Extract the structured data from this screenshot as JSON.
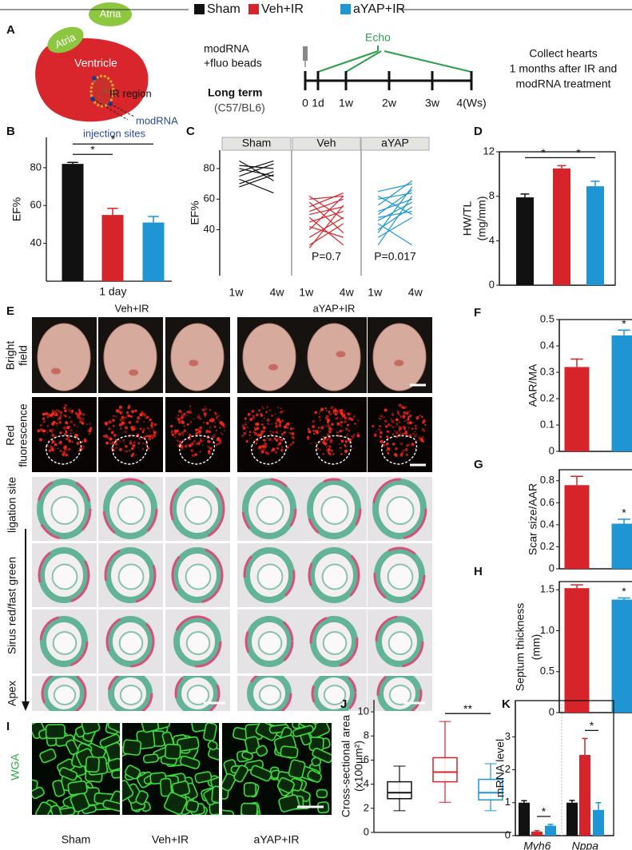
{
  "legend": {
    "items": [
      {
        "label": "Sham",
        "color": "#111111"
      },
      {
        "label": "Veh+IR",
        "color": "#d7242b"
      },
      {
        "label": "aYAP+IR",
        "color": "#1f96d3"
      }
    ]
  },
  "panel_A": {
    "label": "A",
    "atria": [
      "Atria",
      "Atria"
    ],
    "ventricle": "Ventricle",
    "ir_region": "IR region",
    "injection": [
      "modRNA",
      "injection sites"
    ],
    "treatment": [
      "modRNA",
      "+fluo beads"
    ],
    "model": [
      "Long term",
      "(C57/BL6)"
    ],
    "echo": "Echo",
    "timeline": [
      "0",
      "1d",
      "1w",
      "2w",
      "3w",
      "4(Ws)"
    ],
    "collect": [
      "Collect hearts",
      "1 months after IR and",
      "modRNA treatment"
    ]
  },
  "panel_E": {
    "label": "E",
    "groups": [
      "Veh+IR",
      "aYAP+IR"
    ],
    "row_labels": [
      [
        "Bright",
        "field"
      ],
      [
        "Red",
        "fluorescence"
      ]
    ],
    "section_labels": [
      "ligation site",
      "Sirus red/fast green",
      "Apex"
    ]
  },
  "panel_I": {
    "label": "I",
    "stain": "WGA",
    "groups": [
      "Sham",
      "Veh+IR",
      "aYAP+IR"
    ]
  },
  "chart_data": [
    {
      "type": "bar",
      "label": "B",
      "ylabel": [
        "EF%"
      ],
      "ylim": [
        20,
        96
      ],
      "yticks": [
        40,
        60,
        80
      ],
      "frame": false,
      "colors": [
        "#111111",
        "#d7242b",
        "#1f96d3"
      ],
      "groups": [
        {
          "label": "1 day",
          "values": [
            82,
            55,
            51
          ],
          "errors": [
            0.8,
            3.5,
            3.2
          ]
        }
      ],
      "annotations": [
        {
          "text": "*",
          "between": [
            0,
            1
          ]
        },
        {
          "text": "*",
          "between": [
            0,
            2
          ]
        }
      ]
    },
    {
      "type": "paired_line",
      "label": "C",
      "ylabel": [
        "EF%"
      ],
      "ylim": [
        10,
        92
      ],
      "yticks": [
        40,
        60,
        80
      ],
      "categories": [
        "1w",
        "4w"
      ],
      "facets": [
        {
          "title": "Sham",
          "color": "#111111",
          "pairs": [
            [
              82,
              80
            ],
            [
              80,
              75
            ],
            [
              78,
              85
            ],
            [
              85,
              72
            ],
            [
              75,
              83
            ],
            [
              70,
              78
            ],
            [
              73,
              64
            ],
            [
              68,
              76
            ]
          ]
        },
        {
          "title": "Veh",
          "color": "#d7242b",
          "annotation": "P=0.7",
          "pairs": [
            [
              62,
              47
            ],
            [
              60,
              62
            ],
            [
              58,
              38
            ],
            [
              55,
              64
            ],
            [
              52,
              60
            ],
            [
              50,
              55
            ],
            [
              48,
              30
            ],
            [
              45,
              52
            ],
            [
              42,
              35
            ],
            [
              40,
              62
            ],
            [
              35,
              48
            ],
            [
              30,
              44
            ],
            [
              28,
              56
            ]
          ]
        },
        {
          "title": "aYAP",
          "color": "#1f96d3",
          "annotation": "P=0.017",
          "pairs": [
            [
              65,
              70
            ],
            [
              62,
              50
            ],
            [
              60,
              64
            ],
            [
              56,
              72
            ],
            [
              52,
              60
            ],
            [
              50,
              66
            ],
            [
              48,
              52
            ],
            [
              46,
              58
            ],
            [
              44,
              30
            ],
            [
              40,
              55
            ],
            [
              38,
              68
            ],
            [
              35,
              48
            ],
            [
              30,
              62
            ]
          ]
        }
      ]
    },
    {
      "type": "bar",
      "label": "D",
      "ylabel": [
        "HW/TL",
        "(mg/mm)"
      ],
      "ylim": [
        0,
        12
      ],
      "yticks": [
        0,
        4,
        8,
        12
      ],
      "frame": true,
      "colors": [
        "#111111",
        "#d7242b",
        "#1f96d3"
      ],
      "groups": [
        {
          "values": [
            7.9,
            10.5,
            8.9
          ],
          "errors": [
            0.3,
            0.25,
            0.45
          ]
        }
      ],
      "annotations": [
        {
          "text": "*",
          "between": [
            0,
            1
          ]
        },
        {
          "text": "*",
          "between": [
            1,
            2
          ]
        }
      ]
    },
    {
      "type": "bar",
      "label": "F",
      "ylabel": [
        "AAR/MA"
      ],
      "ylim": [
        0,
        0.5
      ],
      "yticks": [
        0,
        0.1,
        0.2,
        0.3,
        0.4,
        0.5
      ],
      "frame": true,
      "colors": [
        "#d7242b",
        "#1f96d3"
      ],
      "groups": [
        {
          "values": [
            0.32,
            0.44
          ],
          "errors": [
            0.03,
            0.02
          ]
        }
      ],
      "annotations": [
        {
          "text": "*",
          "bar": 1
        }
      ]
    },
    {
      "type": "bar",
      "label": "G",
      "ylabel": [
        "Scar size/AAR"
      ],
      "ylim": [
        0,
        0.9
      ],
      "yticks": [
        0,
        0.2,
        0.4,
        0.6,
        0.8
      ],
      "frame": true,
      "colors": [
        "#d7242b",
        "#1f96d3"
      ],
      "groups": [
        {
          "values": [
            0.76,
            0.41
          ],
          "errors": [
            0.08,
            0.04
          ]
        }
      ],
      "annotations": [
        {
          "text": "*",
          "bar": 1
        }
      ]
    },
    {
      "type": "bar",
      "label": "H",
      "ylabel": [
        "Septum thickness",
        "(mm)"
      ],
      "ylim": [
        0,
        1.6
      ],
      "yticks": [
        0,
        0.5,
        {
          "value": 1,
          "label": "1.0"
        },
        1.5
      ],
      "frame": true,
      "colors": [
        "#d7242b",
        "#1f96d3"
      ],
      "groups": [
        {
          "values": [
            1.52,
            1.38
          ],
          "errors": [
            0.04,
            0.02
          ]
        }
      ],
      "annotations": [
        {
          "text": "*",
          "bar": 1
        }
      ]
    },
    {
      "type": "box",
      "label": "J",
      "ylabel": [
        "Cross-sectional area",
        "(x100µm²)"
      ],
      "ylim": [
        0,
        11
      ],
      "yticks": [
        0,
        2,
        4,
        6,
        8,
        10
      ],
      "frame": false,
      "colors": [
        "#111111",
        "#d7242b",
        "#1f96d3"
      ],
      "boxes": [
        {
          "min": 1.8,
          "q1": 2.8,
          "median": 3.3,
          "q3": 4.2,
          "max": 5.5
        },
        {
          "min": 2.5,
          "q1": 4.2,
          "median": 5.0,
          "q3": 6.2,
          "max": 9.2
        },
        {
          "min": 1.8,
          "q1": 2.7,
          "median": 3.3,
          "q3": 4.4,
          "max": 5.7
        }
      ],
      "annotations": [
        {
          "text": "**",
          "between": [
            1,
            2
          ]
        }
      ]
    },
    {
      "type": "bar",
      "label": "K",
      "ylabel": [
        "mRNA level"
      ],
      "ylim": [
        0,
        4.1
      ],
      "yticks": [
        0,
        1,
        2,
        3
      ],
      "frame": true,
      "label_style": "italic",
      "colors": [
        "#111111",
        "#d7242b",
        "#1f96d3"
      ],
      "groups": [
        {
          "label": "Myh6",
          "values": [
            1.0,
            0.12,
            0.3
          ],
          "errors": [
            0.06,
            0.03,
            0.04
          ]
        },
        {
          "label": "Nppa",
          "values": [
            1.0,
            2.45,
            0.78
          ],
          "errors": [
            0.07,
            0.5,
            0.22
          ]
        }
      ],
      "annotations": [
        {
          "text": "*",
          "group": 0,
          "between": [
            1,
            2
          ]
        },
        {
          "text": "*",
          "group": 1,
          "between": [
            1,
            2
          ]
        }
      ]
    }
  ]
}
